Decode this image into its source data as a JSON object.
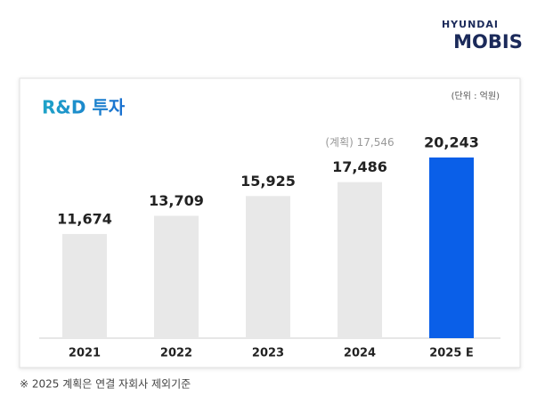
{
  "logo": {
    "brand": "HYUNDAI",
    "name": "MOBIS"
  },
  "chart_data": {
    "type": "bar",
    "title": "R&D 투자",
    "unit_label": "(단위 : 억원)",
    "categories": [
      "2021",
      "2022",
      "2023",
      "2024",
      "2025 E"
    ],
    "values": [
      11674,
      13709,
      15925,
      17486,
      20243
    ],
    "value_labels": [
      "11,674",
      "13,709",
      "15,925",
      "17,486",
      "20,243"
    ],
    "colors": [
      "#e8e8e8",
      "#e8e8e8",
      "#e8e8e8",
      "#e8e8e8",
      "#0a5fe8"
    ],
    "annotation": "(계획) 17,546",
    "note": "※ 2025 계획은 연결 자회사 제외기준"
  }
}
